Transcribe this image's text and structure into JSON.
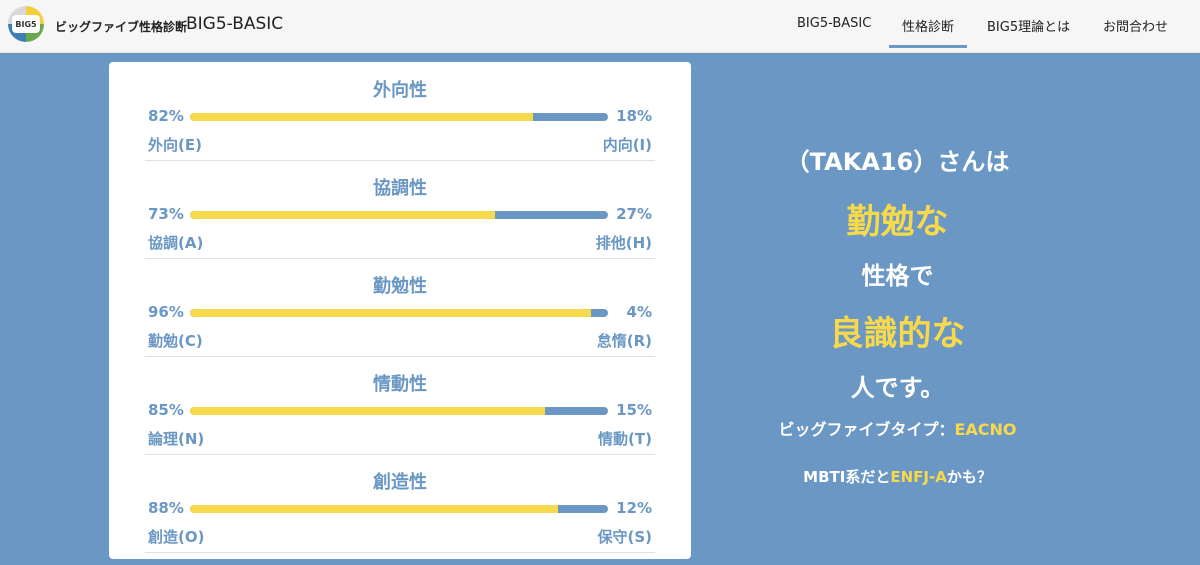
{
  "header": {
    "logo_text": "BIG5",
    "brand_sub": "ビッグファイブ性格診断",
    "brand_main": "BIG5-BASIC",
    "nav": [
      {
        "label": "BIG5-BASIC"
      },
      {
        "label": "性格診断"
      },
      {
        "label": "BIG5理論とは"
      },
      {
        "label": "お問合わせ"
      }
    ],
    "active_nav": "性格診断"
  },
  "traits": [
    {
      "title": "外向性",
      "left_pct": "82%",
      "right_pct": "18%",
      "left_value": 82,
      "left_label": "外向(E)",
      "right_label": "内向(I)"
    },
    {
      "title": "協調性",
      "left_pct": "73%",
      "right_pct": "27%",
      "left_value": 73,
      "left_label": "協調(A)",
      "right_label": "排他(H)"
    },
    {
      "title": "勤勉性",
      "left_pct": "96%",
      "right_pct": "4%",
      "left_value": 96,
      "left_label": "勤勉(C)",
      "right_label": "怠惰(R)"
    },
    {
      "title": "情動性",
      "left_pct": "85%",
      "right_pct": "15%",
      "left_value": 85,
      "left_label": "論理(N)",
      "right_label": "情動(T)"
    },
    {
      "title": "創造性",
      "left_pct": "88%",
      "right_pct": "12%",
      "left_value": 88,
      "left_label": "創造(O)",
      "right_label": "保守(S)"
    }
  ],
  "result": {
    "name_line": "（TAKA16）さんは",
    "trait1": "勤勉な",
    "middle": "性格で",
    "trait2": "良識的な",
    "ending": "人です。",
    "type_label": "ビッグファイブタイプ：",
    "type_value": "EACNO",
    "mbti_prefix": "MBTI系だと",
    "mbti_value": "ENFJ-A",
    "mbti_suffix": "かも？"
  },
  "colors": {
    "accent_blue": "#6a97c3",
    "accent_yellow": "#f7d94c"
  }
}
